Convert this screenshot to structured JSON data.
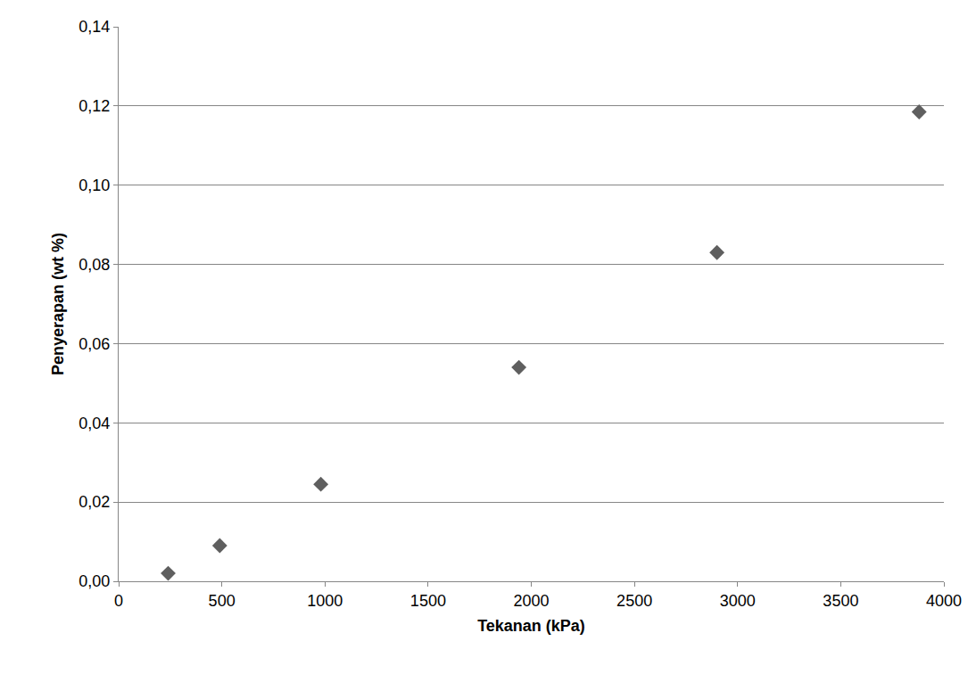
{
  "chart_data": {
    "type": "scatter",
    "x_label": "Tekanan (kPa)",
    "y_label": "Penyerapan (wt %)",
    "x": [
      240,
      490,
      980,
      1940,
      2900,
      3880
    ],
    "values": [
      0.002,
      0.009,
      0.0245,
      0.054,
      0.083,
      0.1185
    ],
    "color": "#5f5f5f",
    "marker": "diamond",
    "xlim": [
      0,
      4000
    ],
    "xticks": [
      0,
      500,
      1000,
      1500,
      2000,
      2500,
      3000,
      3500,
      4000
    ],
    "ylim": [
      0,
      0.14
    ],
    "yticks": [
      {
        "value": 0,
        "label": "0,00"
      },
      {
        "value": 0.02,
        "label": "0,02"
      },
      {
        "value": 0.04,
        "label": "0,04"
      },
      {
        "value": 0.06,
        "label": "0,06"
      },
      {
        "value": 0.08,
        "label": "0,08"
      },
      {
        "value": 0.1,
        "label": "0,10"
      },
      {
        "value": 0.12,
        "label": "0,12"
      },
      {
        "value": 0.14,
        "label": "0,14"
      }
    ],
    "grid": true
  }
}
